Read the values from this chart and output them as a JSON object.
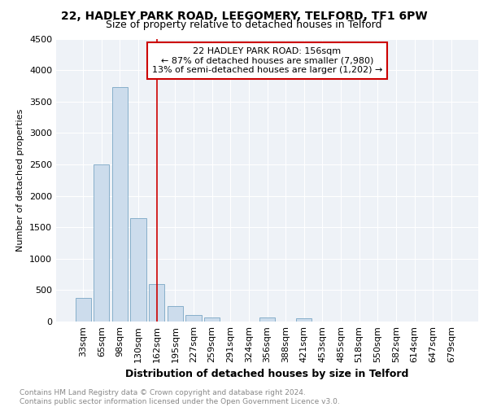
{
  "title": "22, HADLEY PARK ROAD, LEEGOMERY, TELFORD, TF1 6PW",
  "subtitle": "Size of property relative to detached houses in Telford",
  "xlabel": "Distribution of detached houses by size in Telford",
  "ylabel": "Number of detached properties",
  "categories": [
    "33sqm",
    "65sqm",
    "98sqm",
    "130sqm",
    "162sqm",
    "195sqm",
    "227sqm",
    "259sqm",
    "291sqm",
    "324sqm",
    "356sqm",
    "388sqm",
    "421sqm",
    "453sqm",
    "485sqm",
    "518sqm",
    "550sqm",
    "582sqm",
    "614sqm",
    "647sqm",
    "679sqm"
  ],
  "values": [
    370,
    2500,
    3730,
    1650,
    600,
    240,
    100,
    60,
    0,
    0,
    60,
    0,
    50,
    0,
    0,
    0,
    0,
    0,
    0,
    0,
    0
  ],
  "bar_color": "#ccdcec",
  "bar_edge_color": "#6699bb",
  "ylim": [
    0,
    4500
  ],
  "yticks": [
    0,
    500,
    1000,
    1500,
    2000,
    2500,
    3000,
    3500,
    4000,
    4500
  ],
  "property_line_x": 4.0,
  "property_line_color": "#cc0000",
  "annotation_text_line1": "22 HADLEY PARK ROAD: 156sqm",
  "annotation_text_line2": "← 87% of detached houses are smaller (7,980)",
  "annotation_text_line3": "13% of semi-detached houses are larger (1,202) →",
  "annotation_box_color": "#cc0000",
  "bg_color": "#eef2f7",
  "grid_color": "#ffffff",
  "footnote": "Contains HM Land Registry data © Crown copyright and database right 2024.\nContains public sector information licensed under the Open Government Licence v3.0.",
  "title_fontsize": 10,
  "subtitle_fontsize": 9,
  "xlabel_fontsize": 9,
  "ylabel_fontsize": 8,
  "annotation_fontsize": 8,
  "tick_fontsize": 8
}
